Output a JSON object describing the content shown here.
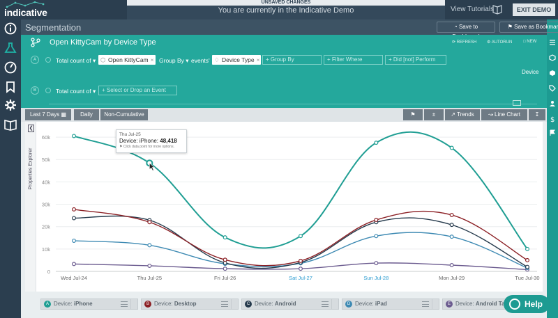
{
  "app": {
    "brand": "indicative",
    "unsaved_notice": "UNSAVED CHANGES",
    "demo_message": "You are currently in the Indicative Demo",
    "view_tutorials": "View Tutorials",
    "exit_demo": "EXIT DEMO"
  },
  "header": {
    "title": "Segmentation",
    "save_dashboard": "Save to Dashboard",
    "save_bookmark": "Save as Bookmark"
  },
  "query": {
    "title": "Open KittyCam by Device Type",
    "refresh": "REFRESH",
    "autorun": "AUTORUN",
    "new": "NEW",
    "row_a": {
      "letter": "A",
      "measure": "Total count of",
      "event": "Open KittyCam",
      "group_by": "Group By",
      "events_text": "events'",
      "property": "Device Type",
      "add_group_by": "+ Group By",
      "add_filter": "+ Filter Where",
      "add_did": "+ Did [not] Perform"
    },
    "row_b": {
      "letter": "B",
      "measure": "Total count of",
      "add_event": "+ Select or Drop an Event"
    },
    "device_label": "Device"
  },
  "toolbar": {
    "date_range": "Last 7 Days",
    "interval": "Daily",
    "cumulative": "Non-Cumulative",
    "trends": "Trends",
    "chart_type": "Line Chart"
  },
  "props_explorer": "Properties Explorer",
  "tooltip": {
    "date": "Thu Jul-25",
    "label": "Device: iPhone:",
    "value": "48,418",
    "hint": "Click data point for more options."
  },
  "legend": [
    {
      "letter": "A",
      "label": "Device:",
      "value": "iPhone",
      "color": "#1f9e93"
    },
    {
      "letter": "B",
      "label": "Device:",
      "value": "Desktop",
      "color": "#8b1f24"
    },
    {
      "letter": "C",
      "label": "Device:",
      "value": "Android",
      "color": "#253a4c"
    },
    {
      "letter": "D",
      "label": "Device:",
      "value": "iPad",
      "color": "#3e8ab3"
    },
    {
      "letter": "E",
      "label": "Device:",
      "value": "Android Table",
      "color": "#6b5b8f"
    }
  ],
  "help": "Help",
  "chart_data": {
    "type": "line",
    "categories": [
      "Wed Jul-24",
      "Thu Jul-25",
      "Fri Jul-26",
      "Sat Jul-27",
      "Sun Jul-28",
      "Mon Jul-29",
      "Tue Jul-30"
    ],
    "weekend_categories": [
      "Sat Jul-27",
      "Sun Jul-28"
    ],
    "yticks": [
      "0",
      "10k",
      "20k",
      "30k",
      "40k",
      "50k",
      "60k"
    ],
    "ylim": [
      0,
      65000
    ],
    "grid": true,
    "series": [
      {
        "name": "iPhone",
        "color": "#1f9e93",
        "values": [
          60500,
          48418,
          15200,
          15800,
          57500,
          55200,
          10000
        ]
      },
      {
        "name": "Desktop",
        "color": "#8b1f24",
        "values": [
          27700,
          22000,
          5200,
          4700,
          23000,
          25200,
          5000
        ]
      },
      {
        "name": "Android",
        "color": "#253a4c",
        "values": [
          23800,
          22900,
          3800,
          4000,
          22000,
          20800,
          2000
        ]
      },
      {
        "name": "iPad",
        "color": "#3e8ab3",
        "values": [
          13700,
          11700,
          3400,
          3600,
          15800,
          15500,
          1500
        ]
      },
      {
        "name": "Android Table",
        "color": "#6b5b8f",
        "values": [
          3300,
          2500,
          1200,
          1200,
          3700,
          2800,
          800
        ]
      }
    ]
  },
  "colors": {
    "accent": "#24a89c",
    "dark": "#2b3e4f",
    "weekend_label": "#2a9bd0"
  }
}
